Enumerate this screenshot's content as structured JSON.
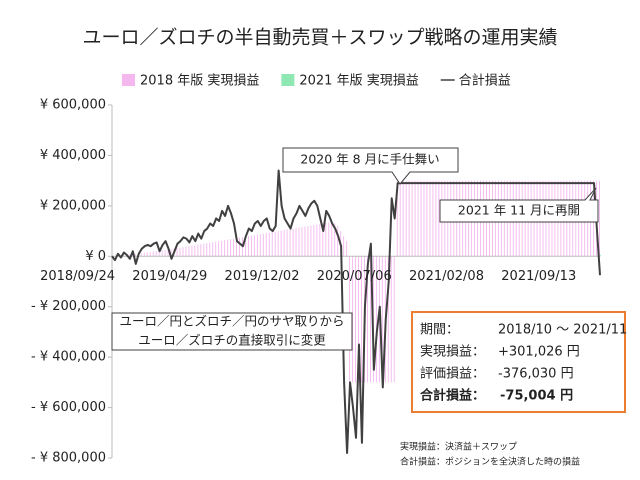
{
  "chart_data": {
    "type": "combo",
    "title": "ユーロ／ズロチの半自動売買＋スワップ戦略の運用実績",
    "categories": [
      "2018/09/24",
      null,
      null,
      null,
      null,
      null,
      null,
      null,
      null,
      null,
      null,
      null,
      null,
      null,
      null,
      null,
      null,
      null,
      null,
      null,
      null,
      null,
      null,
      null,
      null,
      null,
      null,
      null,
      null,
      null,
      null,
      "2019/04/29",
      null,
      null,
      null,
      null,
      null,
      null,
      null,
      null,
      null,
      null,
      null,
      null,
      null,
      null,
      null,
      null,
      null,
      null,
      null,
      null,
      null,
      null,
      null,
      null,
      null,
      null,
      null,
      null,
      null,
      null,
      "2019/12/02",
      null,
      null,
      null,
      null,
      null,
      null,
      null,
      null,
      null,
      null,
      null,
      null,
      null,
      null,
      null,
      null,
      null,
      null,
      null,
      null,
      null,
      null,
      null,
      null,
      null,
      null,
      null,
      null,
      null,
      null,
      "2020/07/06",
      null,
      null,
      null,
      null,
      null,
      null,
      null,
      null,
      null,
      null,
      null,
      null,
      null,
      null,
      null,
      null,
      null,
      null,
      null,
      null,
      null,
      null,
      null,
      null,
      null,
      null,
      null,
      null,
      null,
      null,
      "2021/02/08",
      null,
      null,
      null,
      null,
      null,
      null,
      null,
      null,
      null,
      null,
      null,
      null,
      null,
      null,
      null,
      null,
      null,
      null,
      null,
      null,
      null,
      null,
      null,
      null,
      null,
      null,
      null,
      null,
      null,
      null,
      "2021/09/13",
      null,
      null,
      null,
      null,
      null,
      null,
      null,
      null,
      null
    ],
    "series": [
      {
        "name": "2018 年版 実現損益",
        "type": "bar",
        "color": "#f4b8ef",
        "values": [
          0,
          0,
          2000,
          3000,
          5000,
          5000,
          6000,
          8000,
          9000,
          10000,
          12000,
          14000,
          15000,
          17000,
          19000,
          20000,
          22000,
          24000,
          25000,
          27000,
          28000,
          30000,
          32000,
          34000,
          36000,
          38000,
          40000,
          42000,
          44000,
          46000,
          48000,
          50000,
          52000,
          54000,
          56000,
          58000,
          60000,
          62000,
          64000,
          66000,
          68000,
          70000,
          72000,
          74000,
          76000,
          78000,
          80000,
          82000,
          84000,
          86000,
          88000,
          90000,
          92000,
          94000,
          96000,
          98000,
          100000,
          102000,
          104000,
          106000,
          108000,
          110000,
          112000,
          114000,
          116000,
          118000,
          120000,
          122000,
          124000,
          126000,
          128000,
          130000,
          132000,
          134000,
          136000,
          130000,
          120000,
          100000,
          80000,
          60000,
          -500000,
          -500000,
          -500000,
          -500000,
          -500000,
          -500000,
          -500000,
          -500000,
          -500000,
          -500000,
          -500000,
          -500000,
          -500000,
          -500000,
          -500000,
          -500000,
          300000,
          300000,
          300000,
          300000,
          300000,
          300000,
          300000,
          300000,
          300000,
          300000,
          300000,
          300000,
          300000,
          300000,
          300000,
          300000,
          300000,
          300000,
          300000,
          300000,
          300000,
          300000,
          300000,
          300000,
          300000,
          300000,
          300000,
          300000,
          300000,
          300000,
          300000,
          300000,
          300000,
          300000,
          300000,
          300000,
          300000,
          300000,
          300000,
          300000,
          300000,
          300000,
          300000,
          300000,
          300000,
          300000,
          300000,
          300000,
          300000,
          300000,
          300000,
          300000,
          300000,
          300000,
          300000,
          300000,
          300000,
          300000,
          300000,
          300000,
          300000,
          300000,
          300000,
          300000,
          300000,
          300000,
          300000,
          300000,
          300000
        ]
      },
      {
        "name": "2021 年版 実現損益",
        "type": "bar",
        "color": "#8fe8b4",
        "values": [
          null,
          null,
          null,
          null,
          null,
          null,
          null,
          null,
          null,
          null,
          null,
          null,
          null,
          null,
          null,
          null,
          null,
          null,
          null,
          null,
          null,
          null,
          null,
          null,
          null,
          null,
          null,
          null,
          null,
          null,
          null,
          null,
          null,
          null,
          null,
          null,
          null,
          null,
          null,
          null,
          null,
          null,
          null,
          null,
          null,
          null,
          null,
          null,
          null,
          null,
          null,
          null,
          null,
          null,
          null,
          null,
          null,
          null,
          null,
          null,
          null,
          null,
          null,
          null,
          null,
          null,
          null,
          null,
          null,
          null,
          null,
          null,
          null,
          null,
          null,
          null,
          null,
          null,
          null,
          null,
          null,
          null,
          null,
          null,
          null,
          null,
          null,
          null,
          null,
          null,
          null,
          null,
          null,
          null,
          null,
          null,
          null,
          null,
          null,
          null,
          null,
          null,
          null,
          null,
          null,
          null,
          null,
          null,
          null,
          null,
          null,
          null,
          null,
          null,
          null,
          null,
          null,
          null,
          null,
          null,
          null,
          null,
          null,
          null,
          null,
          null,
          null,
          null,
          null,
          null,
          null,
          null,
          null,
          null,
          null,
          null,
          null,
          null,
          null,
          null,
          null,
          null,
          null,
          null,
          null,
          null,
          null,
          null,
          null,
          null,
          null,
          null,
          null,
          null,
          null,
          null,
          null,
          null,
          null,
          null,
          null,
          null,
          2000,
          3000,
          5000
        ]
      },
      {
        "name": "合計損益",
        "type": "line",
        "color": "#404040",
        "values": [
          0,
          -15000,
          10000,
          -5000,
          15000,
          5000,
          -10000,
          20000,
          -30000,
          10000,
          30000,
          40000,
          45000,
          40000,
          50000,
          55000,
          20000,
          45000,
          60000,
          30000,
          -10000,
          20000,
          50000,
          60000,
          75000,
          70000,
          55000,
          80000,
          60000,
          90000,
          70000,
          100000,
          110000,
          130000,
          120000,
          150000,
          140000,
          180000,
          160000,
          200000,
          170000,
          130000,
          60000,
          50000,
          40000,
          80000,
          110000,
          100000,
          130000,
          140000,
          120000,
          140000,
          150000,
          110000,
          100000,
          120000,
          340000,
          200000,
          150000,
          130000,
          110000,
          150000,
          170000,
          200000,
          180000,
          160000,
          190000,
          210000,
          220000,
          200000,
          150000,
          100000,
          180000,
          160000,
          130000,
          110000,
          80000,
          40000,
          -500000,
          -780000,
          -500000,
          -600000,
          -720000,
          -350000,
          -740000,
          -200000,
          -30000,
          50000,
          -450000,
          -300000,
          -200000,
          -520000,
          -250000,
          -100000,
          230000,
          150000,
          290000,
          290000,
          290000,
          290000,
          290000,
          290000,
          290000,
          290000,
          290000,
          290000,
          290000,
          290000,
          290000,
          290000,
          290000,
          290000,
          290000,
          290000,
          290000,
          290000,
          290000,
          290000,
          290000,
          290000,
          290000,
          290000,
          290000,
          290000,
          290000,
          290000,
          290000,
          290000,
          290000,
          290000,
          290000,
          290000,
          290000,
          290000,
          290000,
          290000,
          290000,
          290000,
          290000,
          290000,
          290000,
          290000,
          290000,
          290000,
          290000,
          290000,
          290000,
          290000,
          290000,
          290000,
          290000,
          290000,
          290000,
          290000,
          290000,
          290000,
          290000,
          290000,
          290000,
          290000,
          290000,
          290000,
          290000,
          100000,
          -75000
        ]
      }
    ],
    "ylim": [
      -800000,
      600000
    ],
    "yticks": [
      {
        "value": 600000,
        "label": "¥ 600,000"
      },
      {
        "value": 400000,
        "label": "¥ 400,000"
      },
      {
        "value": 200000,
        "label": "¥ 200,000"
      },
      {
        "value": 0,
        "label": "¥ 0"
      },
      {
        "value": -200000,
        "label": "- ¥ 200,000"
      },
      {
        "value": -400000,
        "label": "- ¥ 400,000"
      },
      {
        "value": -600000,
        "label": "- ¥ 600,000"
      },
      {
        "value": -800000,
        "label": "- ¥ 800,000"
      }
    ],
    "negative_tick_color": "#c00000",
    "grid": false,
    "legend": "top",
    "annotations": [
      {
        "text": "2020 年 8 月に手仕舞い"
      },
      {
        "text": "2021 年 11 月に再開"
      },
      {
        "lines": [
          "ユーロ／円とズロチ／円のサヤ取りから",
          "ユーロ／ズロチの直接取引に変更"
        ]
      }
    ],
    "summary": {
      "rows": [
        [
          "期間：",
          "2018/10 ～ 2021/11"
        ],
        [
          "実現損益：",
          "+301,026 円"
        ],
        [
          "評価損益：",
          "-376,030 円"
        ],
        [
          "合計損益：",
          "-75,004 円"
        ]
      ],
      "highlight_color": "#ed7d31"
    },
    "notes": [
      "実現損益：決済益＋スワップ",
      "合計損益：ポジションを全決済した時の損益"
    ]
  }
}
